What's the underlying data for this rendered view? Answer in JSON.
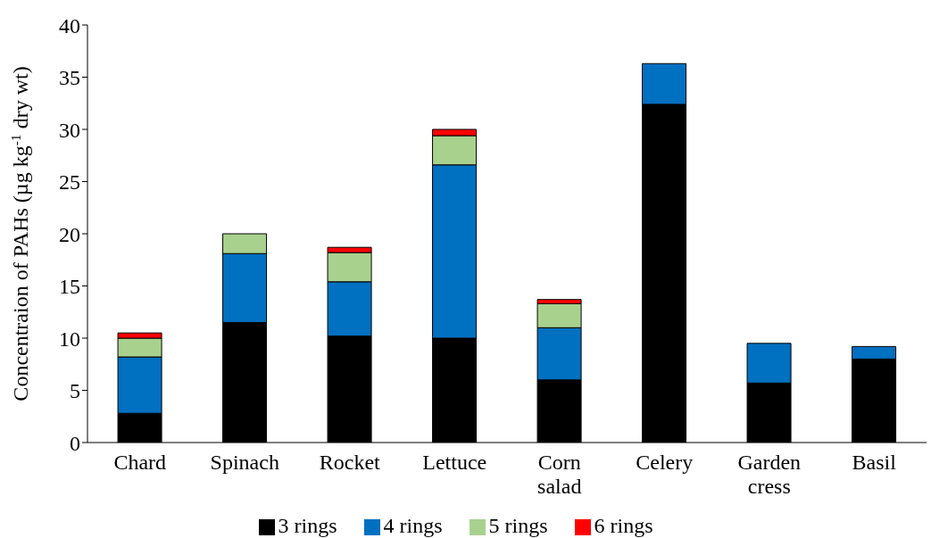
{
  "chart_data": {
    "type": "bar",
    "stacked": true,
    "ylabel": "Concentraion of PAHs (µg kg$^{-1}$ dry wt)",
    "categories": [
      "Chard",
      "Spinach",
      "Rocket",
      "Lettuce",
      "Corn salad",
      "Celery",
      "Garden cress",
      "Basil"
    ],
    "series": [
      {
        "name": "3 rings",
        "color": "#000000",
        "values": [
          2.8,
          11.5,
          10.2,
          10.0,
          6.0,
          32.4,
          5.7,
          8.0
        ]
      },
      {
        "name": "4 rings",
        "color": "#0070c0",
        "values": [
          5.4,
          6.6,
          5.2,
          16.6,
          5.0,
          3.9,
          3.8,
          1.2
        ]
      },
      {
        "name": "5 rings",
        "color": "#a9d18e",
        "values": [
          1.8,
          1.9,
          2.8,
          2.8,
          2.3,
          null,
          null,
          null
        ]
      },
      {
        "name": "6 rings",
        "color": "#ff0000",
        "values": [
          0.5,
          null,
          0.5,
          0.6,
          0.4,
          null,
          null,
          null
        ]
      }
    ],
    "ylim": [
      0,
      40
    ],
    "yticks": [
      0,
      5,
      10,
      15,
      20,
      25,
      30,
      35,
      40
    ],
    "grid": false,
    "legend": "bottom"
  }
}
